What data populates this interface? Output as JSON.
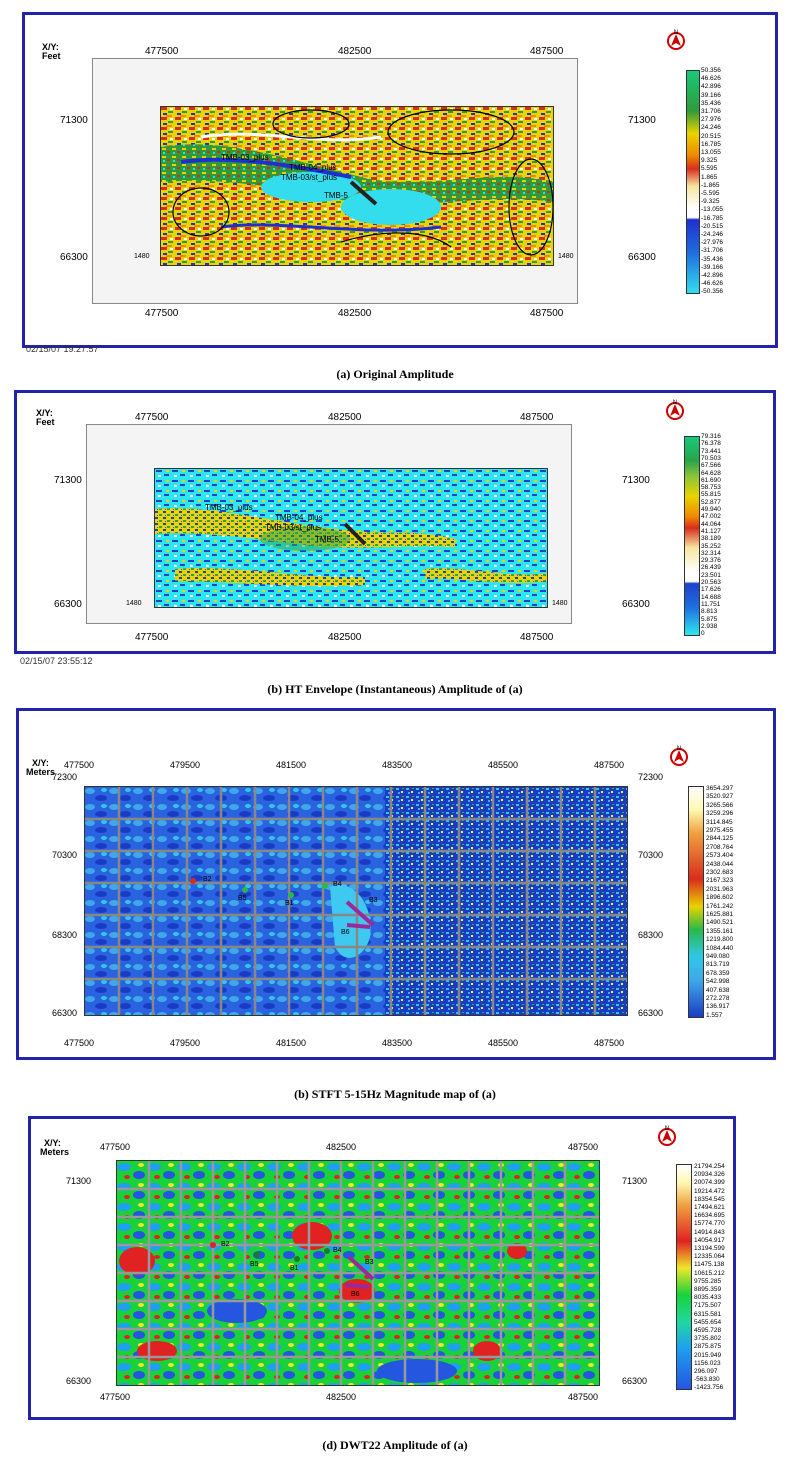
{
  "panels": [
    {
      "caption": "(a) Original Amplitude",
      "timestamp": "02/15/07  19:27:57",
      "xy_label": "X/Y:",
      "units": "Feet",
      "x_ticks_top": [
        "477500",
        "482500",
        "487500"
      ],
      "x_ticks_bottom": [
        "477500",
        "482500",
        "487500"
      ],
      "y_ticks_left": [
        "71300",
        "66300"
      ],
      "y_ticks_right": [
        "71300",
        "66300"
      ],
      "corner_labels": [
        "1480",
        "1480"
      ],
      "colorbar": [
        "50.356",
        "46.626",
        "42.896",
        "39.166",
        "35.436",
        "31.706",
        "27.976",
        "24.246",
        "20.515",
        "16.785",
        "13.055",
        "9.325",
        "5.595",
        "1.865",
        "-1.865",
        "-5.595",
        "-9.325",
        "-13.055",
        "-16.785",
        "-20.515",
        "-24.246",
        "-27.976",
        "-31.706",
        "-35.436",
        "-39.166",
        "-42.896",
        "-46.626",
        "-50.356"
      ],
      "wells": [
        "TMB-03_plus",
        "TMB-04_plus",
        "TMB-03/st_plus",
        "TMB-5"
      ]
    },
    {
      "caption": "(b) HT Envelope (Instantaneous) Amplitude of (a)",
      "timestamp": "02/15/07  23:55:12",
      "xy_label": "X/Y:",
      "units": "Feet",
      "x_ticks_top": [
        "477500",
        "482500",
        "487500"
      ],
      "x_ticks_bottom": [
        "477500",
        "482500",
        "487500"
      ],
      "y_ticks_left": [
        "71300",
        "66300"
      ],
      "y_ticks_right": [
        "71300",
        "66300"
      ],
      "corner_labels": [
        "1480",
        "1480"
      ],
      "colorbar": [
        "79.316",
        "76.378",
        "73.441",
        "70.503",
        "67.566",
        "64.628",
        "61.690",
        "58.753",
        "55.815",
        "52.877",
        "49.940",
        "47.002",
        "44.064",
        "41.127",
        "38.189",
        "35.252",
        "32.314",
        "29.376",
        "26.439",
        "23.501",
        "20.563",
        "17.626",
        "14.688",
        "11.751",
        "8.813",
        "5.875",
        "2.938",
        "0"
      ],
      "wells": [
        "TMB-03_plus",
        "TMB-04_plus",
        "TMB-03/st_plus",
        "TMB-5"
      ]
    },
    {
      "caption": "(b) STFT 5-15Hz Magnitude map of (a)",
      "xy_label": "X/Y:",
      "units": "Meters",
      "x_ticks_top": [
        "477500",
        "479500",
        "481500",
        "483500",
        "485500",
        "487500"
      ],
      "x_ticks_bottom": [
        "477500",
        "479500",
        "481500",
        "483500",
        "485500",
        "487500"
      ],
      "y_ticks_left": [
        "72300",
        "70300",
        "68300",
        "66300"
      ],
      "y_ticks_right": [
        "72300",
        "70300",
        "68300",
        "66300"
      ],
      "colorbar": [
        "3654.297",
        "3520.927",
        "3265.566",
        "3259.296",
        "3114.845",
        "2975.455",
        "2844.125",
        "2708.764",
        "2573.404",
        "2438.044",
        "2302.683",
        "2167.323",
        "2031.963",
        "1896.602",
        "1761.242",
        "1625.881",
        "1490.521",
        "1355.161",
        "1219.800",
        "1084.440",
        "949.080",
        "813.719",
        "678.359",
        "542.998",
        "407.638",
        "272.278",
        "136.917",
        "1.557"
      ],
      "wells": [
        "B2",
        "B5",
        "B1",
        "B4",
        "B3",
        "B6"
      ]
    },
    {
      "caption": "(d) DWT22 Amplitude of (a)",
      "xy_label": "X/Y:",
      "units": "Meters",
      "x_ticks_top": [
        "477500",
        "482500",
        "487500"
      ],
      "x_ticks_bottom": [
        "477500",
        "482500",
        "487500"
      ],
      "y_ticks_left": [
        "71300",
        "66300"
      ],
      "y_ticks_right": [
        "71300",
        "66300"
      ],
      "colorbar": [
        "21794.254",
        "20934.326",
        "20074.399",
        "19214.472",
        "18354.545",
        "17494.621",
        "16634.695",
        "15774.770",
        "14914.843",
        "14054.917",
        "13194.599",
        "12335.064",
        "11475.138",
        "10615.212",
        "9755.285",
        "8895.359",
        "8035.433",
        "7175.507",
        "6315.581",
        "5455.654",
        "4595.728",
        "3735.802",
        "2875.875",
        "2015.949",
        "1156.023",
        "296.097",
        "-563.830",
        "-1423.756"
      ],
      "wells": [
        "B2",
        "B5",
        "B1",
        "B4",
        "B3",
        "B6"
      ]
    }
  ],
  "north_label": "N",
  "colors": {
    "frame": "#2222aa",
    "panel_a": [
      "#27e0c8",
      "#2e9b3a",
      "#e8d400",
      "#f08a00",
      "#d92c1c",
      "#ffffff",
      "#1f2fd0",
      "#33ddee"
    ],
    "panel_b": [
      "#2ee6f0",
      "#1d42c9",
      "#e8d400",
      "#ffffff",
      "#2aa44a",
      "#d92c1c"
    ],
    "panel_c": [
      "#1a3cc4",
      "#2a62e0",
      "#3fa8e8",
      "#2ec8e8",
      "#ffef4a",
      "#2ab84a"
    ],
    "panel_d": [
      "#19d23a",
      "#1e9ff0",
      "#2456e0",
      "#e02222",
      "#f0e62a",
      "#ffffff"
    ]
  }
}
